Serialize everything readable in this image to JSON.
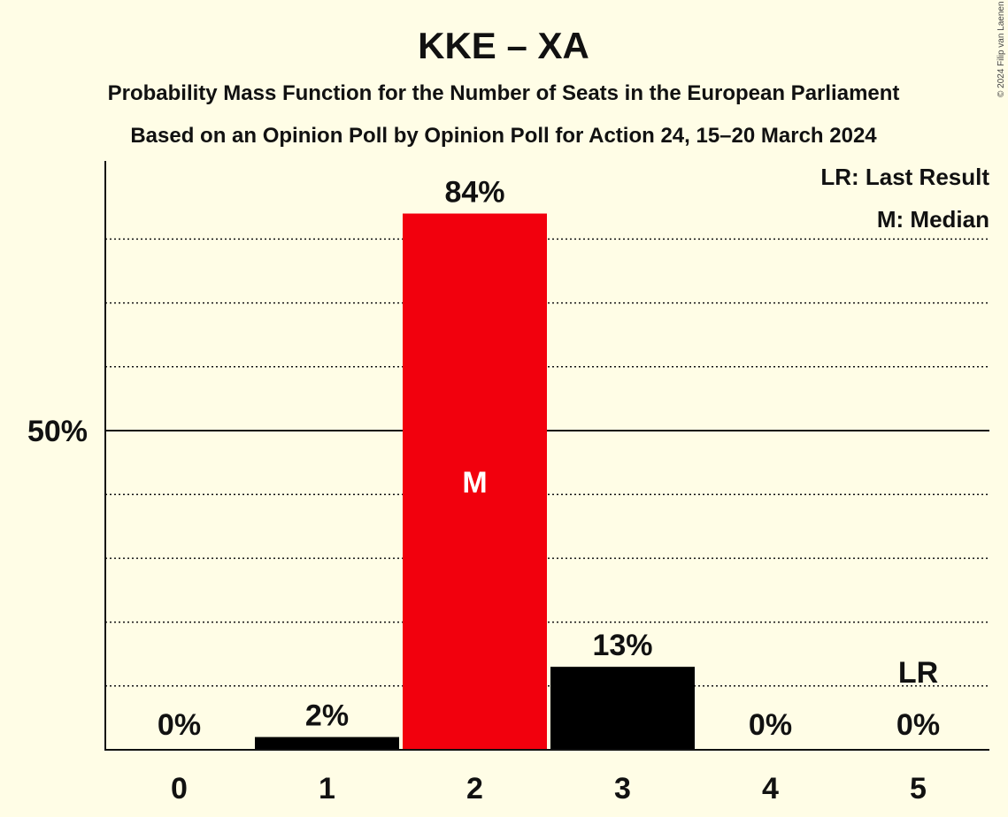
{
  "chart_data": {
    "type": "bar",
    "title": "KKE – XA",
    "subtitle": "Probability Mass Function for the Number of Seats in the European Parliament",
    "subtitle2": "Based on an Opinion Poll by Opinion Poll for Action 24, 15–20 March 2024",
    "categories": [
      "0",
      "1",
      "2",
      "3",
      "4",
      "5"
    ],
    "values": [
      0,
      2,
      84,
      13,
      0,
      0
    ],
    "value_labels": [
      "0%",
      "2%",
      "84%",
      "13%",
      "0%",
      "0%"
    ],
    "colors": [
      "#000000",
      "#000000",
      "#F2000D",
      "#000000",
      "#000000",
      "#000000"
    ],
    "median_index": 2,
    "median_marker": "M",
    "last_result_index": 5,
    "last_result_marker": "LR",
    "ylim": [
      0,
      92
    ],
    "y_major_tick": {
      "value": 50,
      "label": "50%"
    },
    "y_minor_gridlines": [
      10,
      20,
      30,
      40,
      60,
      70,
      80
    ],
    "grid": true,
    "legend_position": "top-right",
    "legend": [
      "LR: Last Result",
      "M: Median"
    ]
  },
  "copyright": "© 2024 Filip van Laenen"
}
